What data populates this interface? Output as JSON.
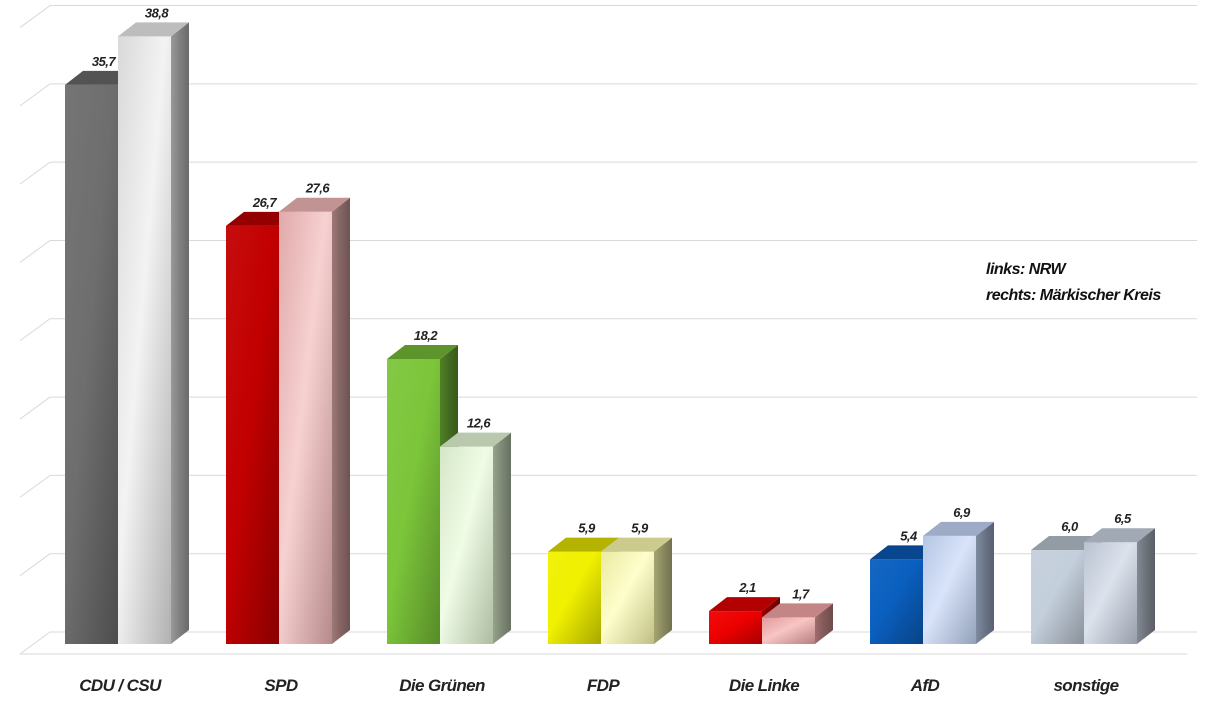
{
  "chart_data": {
    "type": "bar",
    "categories": [
      "CDU / CSU",
      "SPD",
      "Die Grünen",
      "FDP",
      "Die Linke",
      "AfD",
      "sonstige"
    ],
    "series": [
      {
        "name": "links: NRW",
        "values": [
          35.7,
          26.7,
          18.2,
          5.9,
          2.1,
          5.4,
          6.0
        ],
        "value_labels": [
          "35,7",
          "26,7",
          "18,2",
          "5,9",
          "2,1",
          "5,4",
          "6,0"
        ]
      },
      {
        "name": "rechts: Märkischer Kreis",
        "values": [
          38.8,
          27.6,
          12.6,
          5.9,
          1.7,
          6.9,
          6.5
        ],
        "value_labels": [
          "38,8",
          "27,6",
          "12,6",
          "5,9",
          "1,7",
          "6,9",
          "6,5"
        ]
      }
    ],
    "ylim": [
      0,
      40
    ],
    "grid": true,
    "legend_position": "right",
    "title": "",
    "xlabel": "",
    "ylabel": "",
    "colors": {
      "left": [
        "#6e6e6e",
        "#c20000",
        "#7cc63a",
        "#f0f000",
        "#ee0000",
        "#0a5fbf",
        "#c4cfdc"
      ],
      "right": [
        "#ececec",
        "#f3b8b8",
        "#e8fbd8",
        "#fefeb0",
        "#f4a6a6",
        "#c4d6f8",
        "#c9d3e2"
      ]
    }
  }
}
